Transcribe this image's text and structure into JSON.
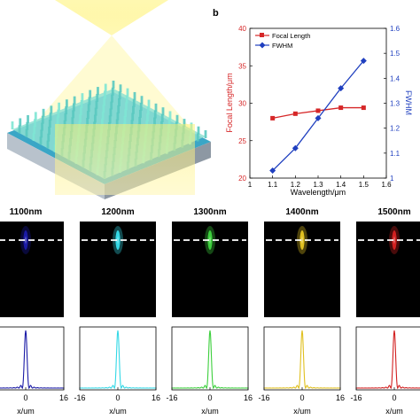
{
  "panel_b_label": "b",
  "chart_data": [
    {
      "type": "line",
      "panel": "b",
      "x": [
        1.1,
        1.2,
        1.3,
        1.4,
        1.5
      ],
      "xlabel": "Wavelength/μm",
      "xlim": [
        1.0,
        1.6
      ],
      "xticks": [
        "1",
        "1.1",
        "1.2",
        "1.3",
        "1.4",
        "1.5",
        "1.6"
      ],
      "ylabel_left": "Focal Length/μm",
      "ylim_left": [
        20,
        40
      ],
      "yticks_left": [
        "20",
        "25",
        "30",
        "35",
        "40"
      ],
      "ylabel_right": "FWHM",
      "ylim_right": [
        1.0,
        1.6
      ],
      "yticks_right": [
        "1",
        "1.1",
        "1.2",
        "1.3",
        "1.4",
        "1.5",
        "1.6"
      ],
      "legend_position": "top-left",
      "series": [
        {
          "name": "Focal Length",
          "axis": "left",
          "color": "#d62728",
          "marker": "square",
          "values": [
            28.0,
            28.6,
            29.0,
            29.4,
            29.4
          ]
        },
        {
          "name": "FWHM",
          "axis": "right",
          "color": "#1f3fbf",
          "marker": "diamond",
          "values": [
            1.03,
            1.12,
            1.24,
            1.36,
            1.47
          ]
        }
      ]
    },
    {
      "type": "line",
      "panel": "profiles",
      "xlabel": "x/um",
      "xlim": [
        -16,
        16
      ],
      "xticks": [
        "-16",
        "0",
        "16"
      ],
      "profiles": [
        {
          "title": "1100nm",
          "color": "#1a1aa6"
        },
        {
          "title": "1200nm",
          "color": "#33d8e6"
        },
        {
          "title": "1300nm",
          "color": "#3ccf3c"
        },
        {
          "title": "1400nm",
          "color": "#e0c020"
        },
        {
          "title": "1500nm",
          "color": "#d22020"
        }
      ]
    }
  ]
}
